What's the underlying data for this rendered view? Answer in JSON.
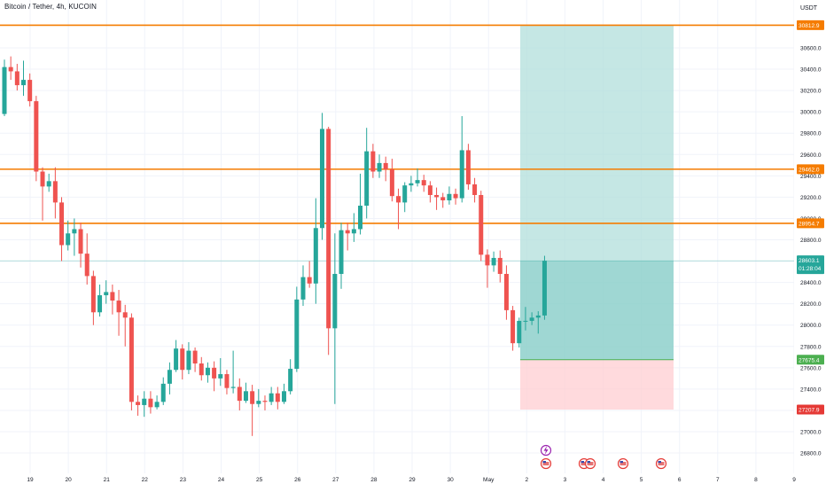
{
  "header": {
    "title": "Bitcoin / Tether, 4h, KUCOIN",
    "currency": "USDT"
  },
  "colors": {
    "up": "#26a69a",
    "down": "#ef5350",
    "level": "#f57c00",
    "profit_zone": "#b2dfdb",
    "loss_zone": "#ffcdd2",
    "grid": "#f0f3fa"
  },
  "chart_data": {
    "type": "candlestick",
    "title": "Bitcoin / Tether, 4h, KUCOIN",
    "ylabel": "USDT",
    "ylim": [
      26700,
      30900
    ],
    "x_ticks": [
      "19",
      "20",
      "21",
      "22",
      "23",
      "24",
      "25",
      "26",
      "27",
      "28",
      "29",
      "30",
      "May",
      "2",
      "3",
      "4",
      "5",
      "6",
      "7",
      "8",
      "9"
    ],
    "y_ticks": [
      26800.0,
      27000.0,
      27200.0,
      27400.0,
      27600.0,
      27800.0,
      28000.0,
      28200.0,
      28400.0,
      28600.0,
      28800.0,
      29000.0,
      29200.0,
      29400.0,
      29600.0,
      29800.0,
      30000.0,
      30200.0,
      30400.0,
      30600.0
    ],
    "y_tick_labels": [
      "26800.0",
      "27000.0",
      "27200.0",
      "27400.0",
      "27600.0",
      "27800.0",
      "28000.0",
      "28200.0",
      "28400.0",
      "28600.0",
      "28800.0",
      "29000.0",
      "29200.0",
      "29400.0",
      "29600.0",
      "29800.0",
      "30000.0",
      "30200.0",
      "30400.0",
      "30600.0"
    ],
    "horizontal_levels": [
      {
        "value": 30812.9,
        "label": "30812.9"
      },
      {
        "value": 29462.0,
        "label": "29462.0"
      },
      {
        "value": 28954.7,
        "label": "28954.7"
      }
    ],
    "last_price": {
      "value": 28603.1,
      "label": "28603.1",
      "countdown": "01:28:04"
    },
    "position": {
      "entry": 27675.4,
      "entry_label": "27675.4",
      "target": 30812.9,
      "stop": 27207.9,
      "stop_label": "27207.9"
    },
    "candles": [
      [
        29980,
        30420,
        30490,
        29960
      ],
      [
        30420,
        30380,
        30520,
        30300
      ],
      [
        30380,
        30250,
        30450,
        30200
      ],
      [
        30250,
        30300,
        30480,
        30150
      ],
      [
        30300,
        30100,
        30360,
        30050
      ],
      [
        30100,
        29440,
        30150,
        29350
      ],
      [
        29440,
        29300,
        29480,
        28980
      ],
      [
        29300,
        29350,
        29420,
        29250
      ],
      [
        29350,
        29150,
        29480,
        29000
      ],
      [
        29150,
        28750,
        29200,
        28600
      ],
      [
        28750,
        28860,
        28980,
        28700
      ],
      [
        28860,
        28900,
        29000,
        28650
      ],
      [
        28900,
        28670,
        28960,
        28540
      ],
      [
        28670,
        28460,
        28860,
        28380
      ],
      [
        28460,
        28120,
        28510,
        28000
      ],
      [
        28120,
        28280,
        28380,
        28080
      ],
      [
        28280,
        28310,
        28420,
        28200
      ],
      [
        28310,
        28230,
        28380,
        28100
      ],
      [
        28230,
        28120,
        28330,
        27900
      ],
      [
        28120,
        28070,
        28190,
        27800
      ],
      [
        28070,
        27280,
        28110,
        27200
      ],
      [
        27280,
        27250,
        27340,
        27150
      ],
      [
        27250,
        27310,
        27380,
        27140
      ],
      [
        27310,
        27230,
        27380,
        27170
      ],
      [
        27230,
        27280,
        27340,
        27210
      ],
      [
        27280,
        27450,
        27510,
        27250
      ],
      [
        27450,
        27580,
        27650,
        27350
      ],
      [
        27580,
        27780,
        27860,
        27560
      ],
      [
        27780,
        27580,
        27820,
        27490
      ],
      [
        27580,
        27760,
        27840,
        27540
      ],
      [
        27760,
        27640,
        27790,
        27560
      ],
      [
        27640,
        27530,
        27700,
        27480
      ],
      [
        27530,
        27600,
        27650,
        27460
      ],
      [
        27600,
        27500,
        27660,
        27380
      ],
      [
        27500,
        27540,
        27690,
        27430
      ],
      [
        27540,
        27410,
        27580,
        27350
      ],
      [
        27410,
        27420,
        27760,
        27360
      ],
      [
        27420,
        27290,
        27500,
        27200
      ],
      [
        27290,
        27380,
        27460,
        27270
      ],
      [
        27380,
        27260,
        27440,
        26960
      ],
      [
        27260,
        27290,
        27400,
        27230
      ],
      [
        27290,
        27280,
        27340,
        27200
      ],
      [
        27280,
        27360,
        27420,
        27250
      ],
      [
        27360,
        27280,
        27420,
        27210
      ],
      [
        27280,
        27380,
        27450,
        27260
      ],
      [
        27380,
        27590,
        27680,
        27350
      ],
      [
        27590,
        28240,
        28360,
        27560
      ],
      [
        28240,
        28450,
        28560,
        28180
      ],
      [
        28450,
        28390,
        28600,
        28350
      ],
      [
        28390,
        28910,
        29190,
        28200
      ],
      [
        28910,
        29840,
        29990,
        28800
      ],
      [
        29840,
        27970,
        29860,
        27720
      ],
      [
        27970,
        28480,
        28860,
        27260
      ],
      [
        28480,
        28890,
        28960,
        28340
      ],
      [
        28890,
        28860,
        28960,
        28700
      ],
      [
        28860,
        28900,
        29050,
        28780
      ],
      [
        28900,
        29120,
        29420,
        28850
      ],
      [
        29120,
        29630,
        29850,
        29000
      ],
      [
        29630,
        29440,
        29700,
        29380
      ],
      [
        29440,
        29520,
        29600,
        29380
      ],
      [
        29520,
        29460,
        29580,
        29350
      ],
      [
        29460,
        29210,
        29560,
        29160
      ],
      [
        29210,
        29150,
        29280,
        28900
      ],
      [
        29150,
        29310,
        29340,
        29060
      ],
      [
        29310,
        29330,
        29400,
        29250
      ],
      [
        29330,
        29360,
        29470,
        29300
      ],
      [
        29360,
        29310,
        29410,
        29250
      ],
      [
        29310,
        29220,
        29350,
        29150
      ],
      [
        29220,
        29200,
        29290,
        29080
      ],
      [
        29200,
        29170,
        29240,
        29100
      ],
      [
        29170,
        29230,
        29300,
        29130
      ],
      [
        29230,
        29190,
        29280,
        29130
      ],
      [
        29190,
        29640,
        29960,
        29150
      ],
      [
        29640,
        29320,
        29700,
        29270
      ],
      [
        29320,
        29220,
        29380,
        29150
      ],
      [
        29220,
        28660,
        29260,
        28600
      ],
      [
        28660,
        28560,
        28710,
        28350
      ],
      [
        28560,
        28630,
        28690,
        28500
      ],
      [
        28630,
        28480,
        28700,
        28400
      ],
      [
        28480,
        28140,
        28560,
        28050
      ],
      [
        28140,
        27830,
        28180,
        27760
      ],
      [
        27830,
        28040,
        28070,
        27790
      ],
      [
        28040,
        28040,
        28170,
        27950
      ],
      [
        28040,
        28070,
        28120,
        28000
      ],
      [
        28070,
        28090,
        28130,
        27920
      ],
      [
        28090,
        28603.1,
        28650,
        28050
      ]
    ]
  },
  "events": {
    "flash_icon": "lightning-bolt-icon",
    "flags": [
      "us-flag-icon",
      "us-flag-icon",
      "us-flag-icon",
      "us-flag-icon",
      "us-flag-icon",
      "us-flag-icon"
    ]
  }
}
